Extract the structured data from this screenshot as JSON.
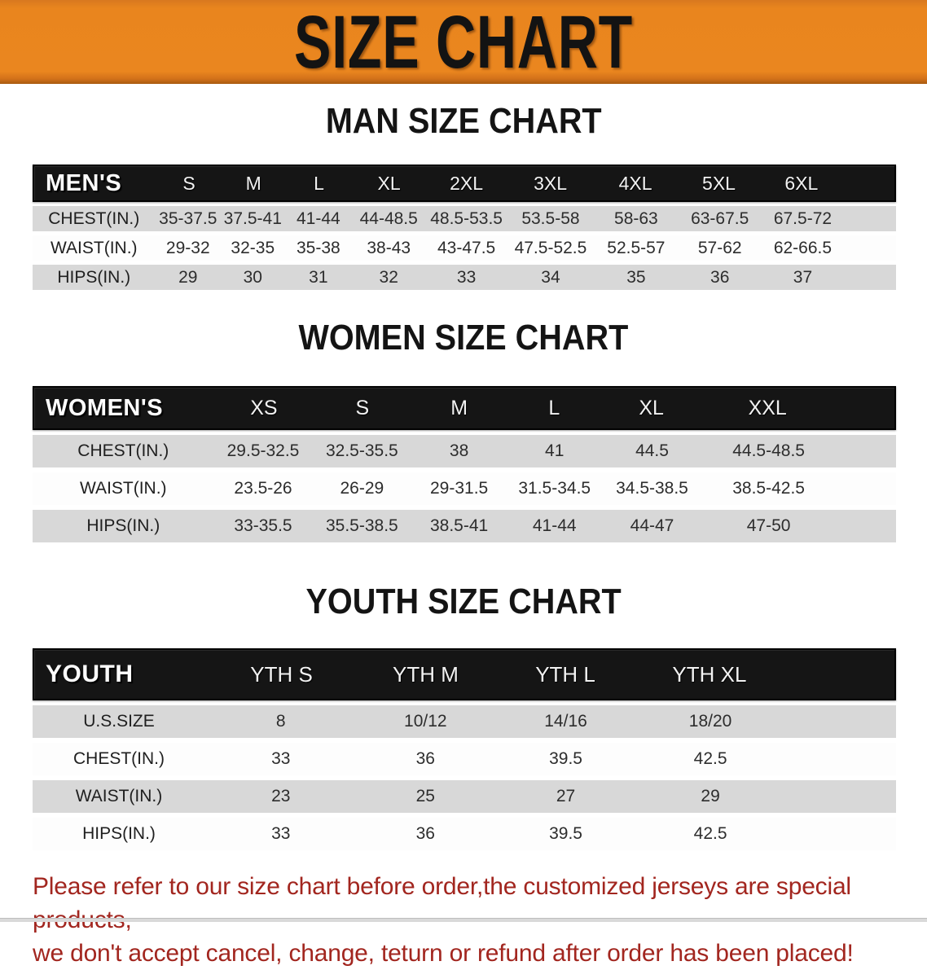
{
  "banner": {
    "title": "SIZE CHART",
    "bg_color": "#e9851e",
    "text_color": "#131313"
  },
  "sections": [
    {
      "heading": "MAN SIZE CHART",
      "table": {
        "label": "MEN'S",
        "columns": [
          "S",
          "M",
          "L",
          "XL",
          "2XL",
          "3XL",
          "4XL",
          "5XL",
          "6XL"
        ],
        "rows": [
          {
            "label": "CHEST(IN.)",
            "values": [
              "35-37.5",
              "37.5-41",
              "41-44",
              "44-48.5",
              "48.5-53.5",
              "53.5-58",
              "58-63",
              "63-67.5",
              "67.5-72"
            ]
          },
          {
            "label": "WAIST(IN.)",
            "values": [
              "29-32",
              "32-35",
              "35-38",
              "38-43",
              "43-47.5",
              "47.5-52.5",
              "52.5-57",
              "57-62",
              "62-66.5"
            ]
          },
          {
            "label": "HIPS(IN.)",
            "values": [
              "29",
              "30",
              "31",
              "32",
              "33",
              "34",
              "35",
              "36",
              "37"
            ]
          }
        ]
      }
    },
    {
      "heading": "WOMEN SIZE CHART",
      "table": {
        "label": "WOMEN'S",
        "columns": [
          "XS",
          "S",
          "M",
          "L",
          "XL",
          "XXL"
        ],
        "rows": [
          {
            "label": "CHEST(IN.)",
            "values": [
              "29.5-32.5",
              "32.5-35.5",
              "38",
              "41",
              "44.5",
              "44.5-48.5"
            ]
          },
          {
            "label": "WAIST(IN.)",
            "values": [
              "23.5-26",
              "26-29",
              "29-31.5",
              "31.5-34.5",
              "34.5-38.5",
              "38.5-42.5"
            ]
          },
          {
            "label": "HIPS(IN.)",
            "values": [
              "33-35.5",
              "35.5-38.5",
              "38.5-41",
              "41-44",
              "44-47",
              "47-50"
            ]
          }
        ]
      }
    },
    {
      "heading": "YOUTH SIZE CHART",
      "table": {
        "label": "YOUTH",
        "columns": [
          "YTH S",
          "YTH M",
          "YTH L",
          "YTH XL"
        ],
        "rows": [
          {
            "label": "U.S.SIZE",
            "values": [
              "8",
              "10/12",
              "14/16",
              "18/20"
            ]
          },
          {
            "label": "CHEST(IN.)",
            "values": [
              "33",
              "36",
              "39.5",
              "42.5"
            ]
          },
          {
            "label": "WAIST(IN.)",
            "values": [
              "23",
              "25",
              "27",
              "29"
            ]
          },
          {
            "label": "HIPS(IN.)",
            "values": [
              "33",
              "36",
              "39.5",
              "42.5"
            ]
          }
        ]
      }
    }
  ],
  "footer": {
    "line1": "Please refer to our size chart before order,the customized jerseys are special products,",
    "line2": "we don't accept cancel, change, teturn or refund after order has been placed!",
    "text_color": "#a2261f"
  },
  "colors": {
    "header_bar_bg": "#151515",
    "row_gray": "#d8d8d8",
    "row_white": "#fdfdfd"
  }
}
